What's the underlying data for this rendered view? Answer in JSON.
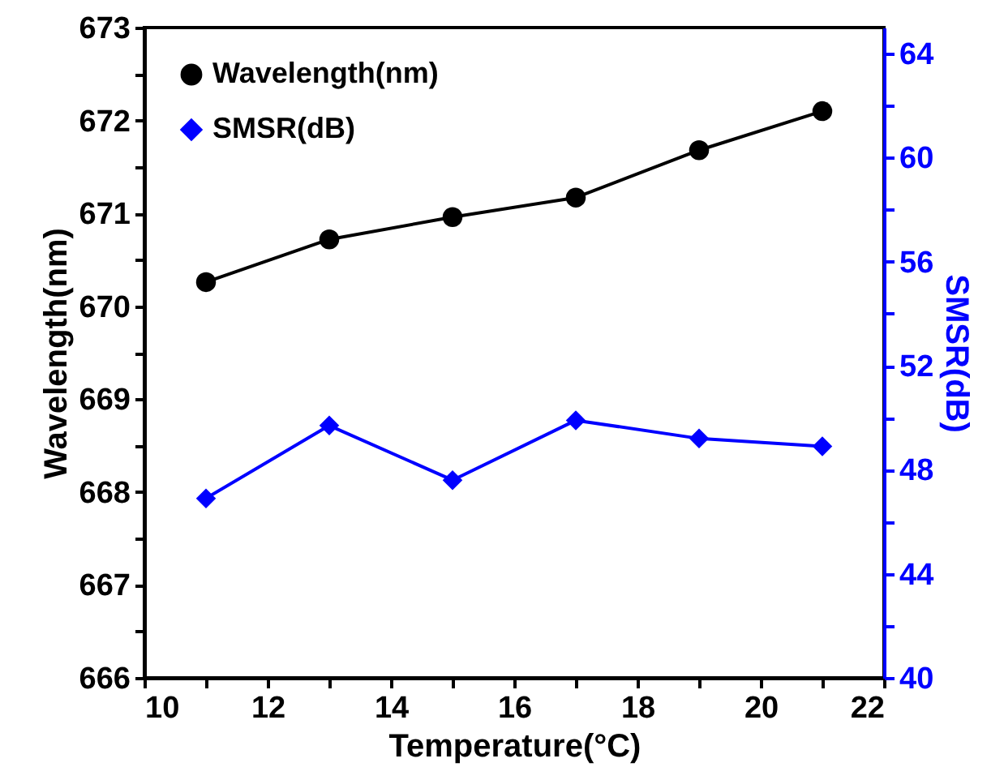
{
  "chart_data": {
    "type": "line",
    "xlabel": "Temperature(°C)",
    "ylabel": "Wavelength(nm)",
    "y2label": "SMSR(dB)",
    "x": [
      11,
      13,
      15,
      17,
      19,
      21
    ],
    "series": [
      {
        "name": "Wavelength(nm)",
        "color": "#000000",
        "marker": "circle",
        "values": [
          670.26,
          670.72,
          670.96,
          671.17,
          671.68,
          672.1
        ]
      },
      {
        "name": "SMSR(dB)",
        "color": "#0000ff",
        "marker": "diamond",
        "axis": "y2",
        "values": [
          46.9,
          49.7,
          47.6,
          49.9,
          49.2,
          48.9
        ]
      }
    ],
    "xlim": [
      10,
      22
    ],
    "xticks": [
      10,
      {
        "value": 11,
        "label": null
      },
      12,
      {
        "value": 13,
        "label": null
      },
      14,
      {
        "value": 15,
        "label": null
      },
      16,
      {
        "value": 17,
        "label": null
      },
      18,
      {
        "value": 19,
        "label": null
      },
      20,
      {
        "value": 21,
        "label": null
      },
      22
    ],
    "ylim": [
      666,
      673
    ],
    "yticks": [
      666,
      {
        "value": 666.5,
        "label": null
      },
      667,
      {
        "value": 667.5,
        "label": null
      },
      668,
      {
        "value": 668.5,
        "label": null
      },
      669,
      {
        "value": 669.5,
        "label": null
      },
      670,
      {
        "value": 670.5,
        "label": null
      },
      671,
      {
        "value": 671.5,
        "label": null
      },
      672,
      {
        "value": 672.5,
        "label": null
      },
      673
    ],
    "y2lim": [
      40,
      65
    ],
    "y2ticks": [
      40,
      {
        "value": 42,
        "label": null
      },
      44,
      {
        "value": 46,
        "label": null
      },
      48,
      {
        "value": 50,
        "label": null
      },
      52,
      {
        "value": 54,
        "label": null
      },
      56,
      {
        "value": 58,
        "label": null
      },
      60,
      {
        "value": 62,
        "label": null
      },
      64
    ],
    "legend": "top left",
    "grid": false,
    "line_style": "solid"
  }
}
